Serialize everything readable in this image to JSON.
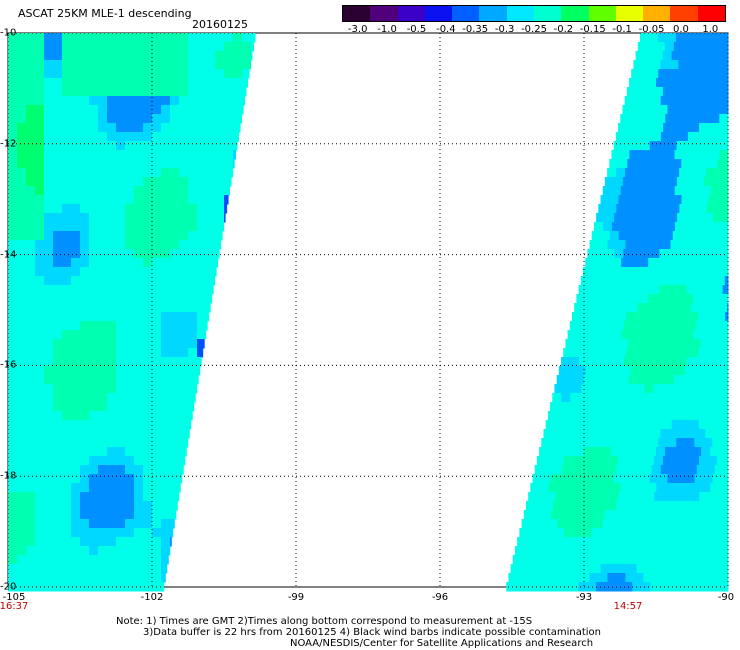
{
  "header": {
    "title": "ASCAT 25KM MLE-1 descending",
    "date": "20160125"
  },
  "colorbar": {
    "labels": [
      "-3.0",
      "-1.0",
      "-0.5",
      "-0.4",
      "-0.35",
      "-0.3",
      "-0.25",
      "-0.2",
      "-0.15",
      "-0.1",
      "-0.05",
      "0.0",
      "1.0"
    ],
    "colors": [
      "#2a0030",
      "#50007a",
      "#3a00c8",
      "#0a10f0",
      "#0060ff",
      "#00a8ff",
      "#00e8ff",
      "#00ffd0",
      "#00ff60",
      "#60ff00",
      "#e8ff00",
      "#ffb000",
      "#ff4000",
      "#ff0000"
    ]
  },
  "axes": {
    "lat_labels": [
      "-10",
      "-12",
      "-14",
      "-16",
      "-18",
      "-20"
    ],
    "lon_labels": [
      "-105",
      "-102",
      "-99",
      "-96",
      "-93",
      "-90"
    ]
  },
  "swath_colors": {
    "base": "#00ffe8",
    "light": "#00ffb0",
    "green": "#00ff70",
    "mid": "#00d8ff",
    "dark": "#0090ff",
    "deep": "#0050ff"
  },
  "times": {
    "left": "16:37",
    "right": "14:57"
  },
  "notes": {
    "line1": "Note: 1) Times are GMT 2)Times along bottom correspond to measurement at -15S",
    "line2": "3)Data buffer is 22 hrs from 20160125 4) Black wind barbs indicate possible contamination",
    "line3": "NOAA/NESDIS/Center for Satellite Applications and Research"
  }
}
